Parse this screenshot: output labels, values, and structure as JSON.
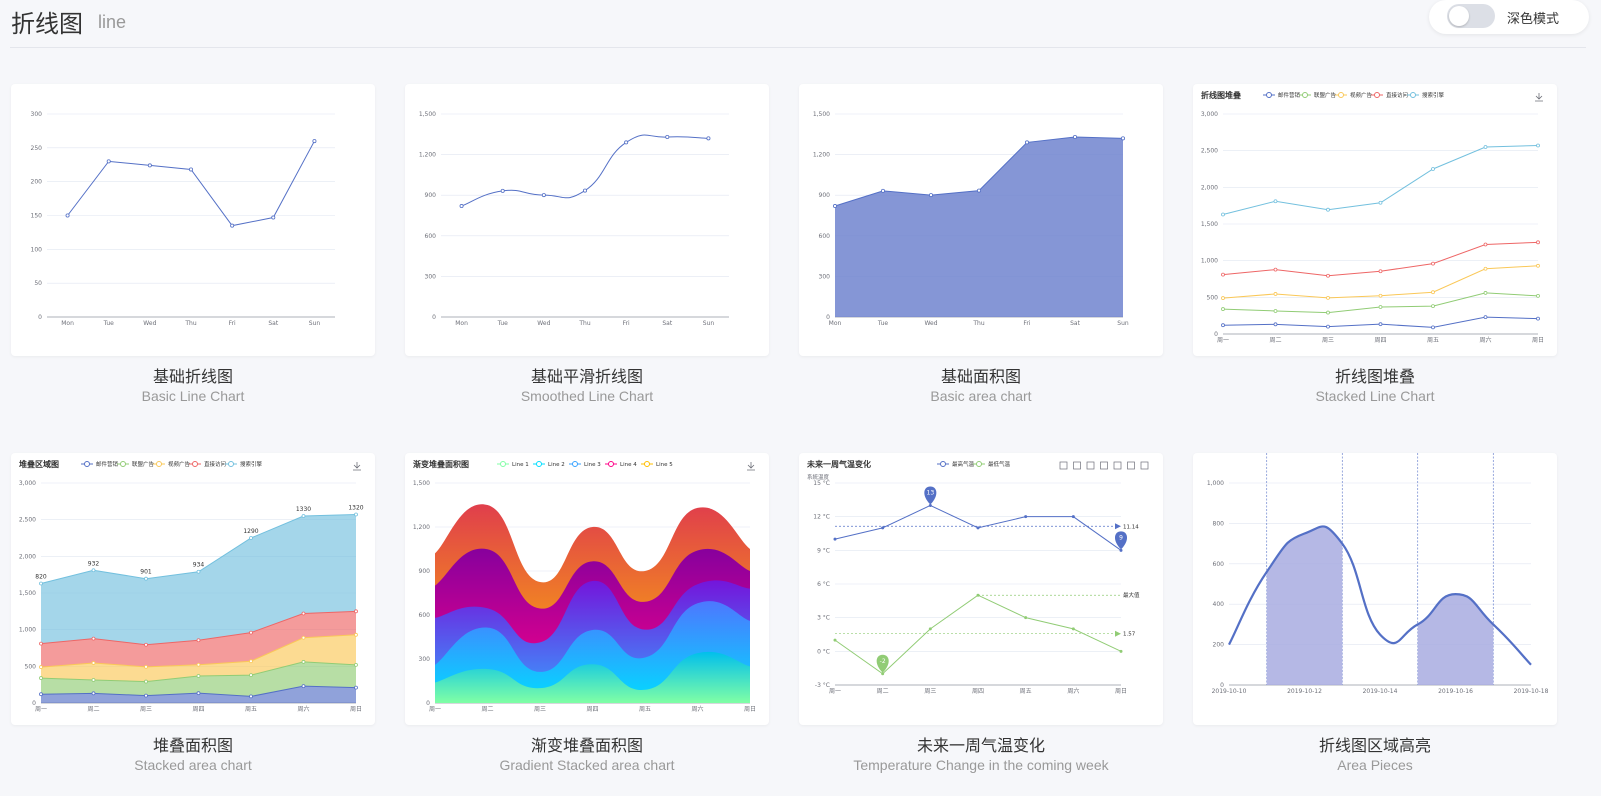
{
  "header": {
    "title": "折线图",
    "subtitle": "line",
    "dark_mode_label": "深色模式"
  },
  "weekdays_en": [
    "Mon",
    "Tue",
    "Wed",
    "Thu",
    "Fri",
    "Sat",
    "Sun"
  ],
  "weekdays_cn": [
    "周一",
    "周二",
    "周三",
    "周四",
    "周五",
    "周六",
    "周日"
  ],
  "cards": [
    {
      "cn": "基础折线图",
      "en": "Basic Line Chart"
    },
    {
      "cn": "基础平滑折线图",
      "en": "Smoothed Line Chart"
    },
    {
      "cn": "基础面积图",
      "en": "Basic area chart"
    },
    {
      "cn": "折线图堆叠",
      "en": "Stacked Line Chart"
    },
    {
      "cn": "堆叠面积图",
      "en": "Stacked area chart"
    },
    {
      "cn": "渐变堆叠面积图",
      "en": "Gradient Stacked area chart"
    },
    {
      "cn": "未来一周气温变化",
      "en": "Temperature Change in the coming week"
    },
    {
      "cn": "折线图区域高亮",
      "en": "Area Pieces"
    }
  ],
  "chart_data": [
    {
      "type": "line",
      "categories": [
        "Mon",
        "Tue",
        "Wed",
        "Thu",
        "Fri",
        "Sat",
        "Sun"
      ],
      "values": [
        150,
        230,
        224,
        218,
        135,
        147,
        260
      ],
      "ylim": [
        0,
        300
      ],
      "yticks": [
        0,
        50,
        100,
        150,
        200,
        250,
        300
      ]
    },
    {
      "type": "line",
      "smooth": true,
      "categories": [
        "Mon",
        "Tue",
        "Wed",
        "Thu",
        "Fri",
        "Sat",
        "Sun"
      ],
      "values": [
        820,
        932,
        901,
        934,
        1290,
        1330,
        1320
      ],
      "ylim": [
        0,
        1500
      ],
      "yticks": [
        0,
        300,
        600,
        900,
        1200,
        1500
      ],
      "yticklabels": [
        "0",
        "300",
        "600",
        "900",
        "1,200",
        "1,500"
      ]
    },
    {
      "type": "area",
      "categories": [
        "Mon",
        "Tue",
        "Wed",
        "Thu",
        "Fri",
        "Sat",
        "Sun"
      ],
      "values": [
        820,
        932,
        901,
        934,
        1290,
        1330,
        1320
      ],
      "ylim": [
        0,
        1500
      ],
      "yticks": [
        0,
        300,
        600,
        900,
        1200,
        1500
      ],
      "yticklabels": [
        "0",
        "300",
        "600",
        "900",
        "1,200",
        "1,500"
      ]
    },
    {
      "type": "line",
      "stacked": true,
      "title": "折线图堆叠",
      "legend_position": "top",
      "categories": [
        "周一",
        "周二",
        "周三",
        "周四",
        "周五",
        "周六",
        "周日"
      ],
      "ylim": [
        0,
        3000
      ],
      "yticks": [
        0,
        500,
        1000,
        1500,
        2000,
        2500,
        3000
      ],
      "yticklabels": [
        "0",
        "500",
        "1,000",
        "1,500",
        "2,000",
        "2,500",
        "3,000"
      ],
      "series": [
        {
          "name": "邮件营销",
          "values": [
            120,
            132,
            101,
            134,
            90,
            230,
            210
          ],
          "color": "#5470c6"
        },
        {
          "name": "联盟广告",
          "values": [
            220,
            182,
            191,
            234,
            290,
            330,
            310
          ],
          "color": "#91cc75"
        },
        {
          "name": "视频广告",
          "values": [
            150,
            232,
            201,
            154,
            190,
            330,
            410
          ],
          "color": "#fac858"
        },
        {
          "name": "直接访问",
          "values": [
            320,
            332,
            301,
            334,
            390,
            330,
            320
          ],
          "color": "#ee6666"
        },
        {
          "name": "搜索引擎",
          "values": [
            820,
            932,
            901,
            934,
            1290,
            1330,
            1320
          ],
          "color": "#73c0de"
        }
      ]
    },
    {
      "type": "area",
      "stacked": true,
      "title": "堆叠区域图",
      "legend_position": "top",
      "categories": [
        "周一",
        "周二",
        "周三",
        "周四",
        "周五",
        "周六",
        "周日"
      ],
      "ylim": [
        0,
        3000
      ],
      "yticks": [
        0,
        500,
        1000,
        1500,
        2000,
        2500,
        3000
      ],
      "yticklabels": [
        "0",
        "500",
        "1,000",
        "1,500",
        "2,000",
        "2,500",
        "3,000"
      ],
      "top_labels": [
        "820",
        "932",
        "901",
        "934",
        "1290",
        "1330",
        "1320"
      ],
      "series": [
        {
          "name": "邮件营销",
          "values": [
            120,
            132,
            101,
            134,
            90,
            230,
            210
          ],
          "color": "#5470c6"
        },
        {
          "name": "联盟广告",
          "values": [
            220,
            182,
            191,
            234,
            290,
            330,
            310
          ],
          "color": "#91cc75"
        },
        {
          "name": "视频广告",
          "values": [
            150,
            232,
            201,
            154,
            190,
            330,
            410
          ],
          "color": "#fac858"
        },
        {
          "name": "直接访问",
          "values": [
            320,
            332,
            301,
            334,
            390,
            330,
            320
          ],
          "color": "#ee6666"
        },
        {
          "name": "搜索引擎",
          "values": [
            820,
            932,
            901,
            934,
            1290,
            1330,
            1320
          ],
          "color": "#73c0de"
        }
      ]
    },
    {
      "type": "area",
      "stacked": true,
      "smooth": true,
      "title": "渐变堆叠面积图",
      "legend_position": "top",
      "categories": [
        "周一",
        "周二",
        "周三",
        "周四",
        "周五",
        "周六",
        "周日"
      ],
      "ylim": [
        0,
        1500
      ],
      "yticks": [
        0,
        300,
        600,
        900,
        1200,
        1500
      ],
      "yticklabels": [
        "0",
        "300",
        "600",
        "900",
        "1,200",
        "1,500"
      ],
      "series": [
        {
          "name": "Line 1",
          "values": [
            140,
            232,
            101,
            264,
            90,
            340,
            250
          ],
          "color": "#80ffa5",
          "color2": "#01bfec"
        },
        {
          "name": "Line 2",
          "values": [
            120,
            282,
            111,
            234,
            220,
            340,
            310
          ],
          "color": "#00ddff",
          "color2": "#4d77ff"
        },
        {
          "name": "Line 3",
          "values": [
            320,
            132,
            201,
            334,
            190,
            130,
            220
          ],
          "color": "#37a2ff",
          "color2": "#7415db"
        },
        {
          "name": "Line 4",
          "values": [
            220,
            402,
            231,
            134,
            190,
            230,
            120
          ],
          "color": "#ff0087",
          "color2": "#87009d"
        },
        {
          "name": "Line 5",
          "values": [
            220,
            302,
            181,
            234,
            210,
            290,
            150
          ],
          "color": "#ffbf00",
          "color2": "#e03e4c"
        }
      ]
    },
    {
      "type": "line",
      "title": "未来一周气温变化",
      "ylabel": "系統温度",
      "legend_position": "top",
      "categories": [
        "周一",
        "周二",
        "周三",
        "周四",
        "周五",
        "周六",
        "周日"
      ],
      "ylim": [
        -3,
        15
      ],
      "yticks": [
        -3,
        0,
        3,
        6,
        9,
        12,
        15
      ],
      "yticklabels": [
        "-3 °C",
        "0 °C",
        "3 °C",
        "6 °C",
        "9 °C",
        "12 °C",
        "15 °C"
      ],
      "series": [
        {
          "name": "最高气温",
          "values": [
            10,
            11,
            13,
            11,
            12,
            12,
            9
          ],
          "color": "#5470c6",
          "max_pin": "13",
          "min_pin": "9",
          "avg_label": "11.14"
        },
        {
          "name": "最低气温",
          "values": [
            1,
            -2,
            2,
            5,
            3,
            2,
            0
          ],
          "color": "#91cc75",
          "min_pin": "-2",
          "avg_label": "1.57",
          "max_label": "最大值"
        }
      ]
    },
    {
      "type": "line",
      "smooth": true,
      "categories": [
        "2019-10-10",
        "2019-10-12",
        "2019-10-14",
        "2019-10-16",
        "2019-10-18"
      ],
      "ylim": [
        0,
        1000
      ],
      "yticks": [
        0,
        200,
        400,
        600,
        800,
        1000
      ],
      "yticklabels": [
        "0",
        "200",
        "400",
        "600",
        "800",
        "1,000"
      ],
      "x": [
        "2019-10-10",
        "2019-10-11",
        "2019-10-12",
        "2019-10-13",
        "2019-10-14",
        "2019-10-15",
        "2019-10-16",
        "2019-10-17",
        "2019-10-18"
      ],
      "values": [
        200,
        560,
        750,
        700,
        250,
        300,
        450,
        300,
        100
      ],
      "pieces": [
        [
          "2019-10-11",
          "2019-10-13"
        ],
        [
          "2019-10-15",
          "2019-10-17"
        ]
      ]
    }
  ]
}
